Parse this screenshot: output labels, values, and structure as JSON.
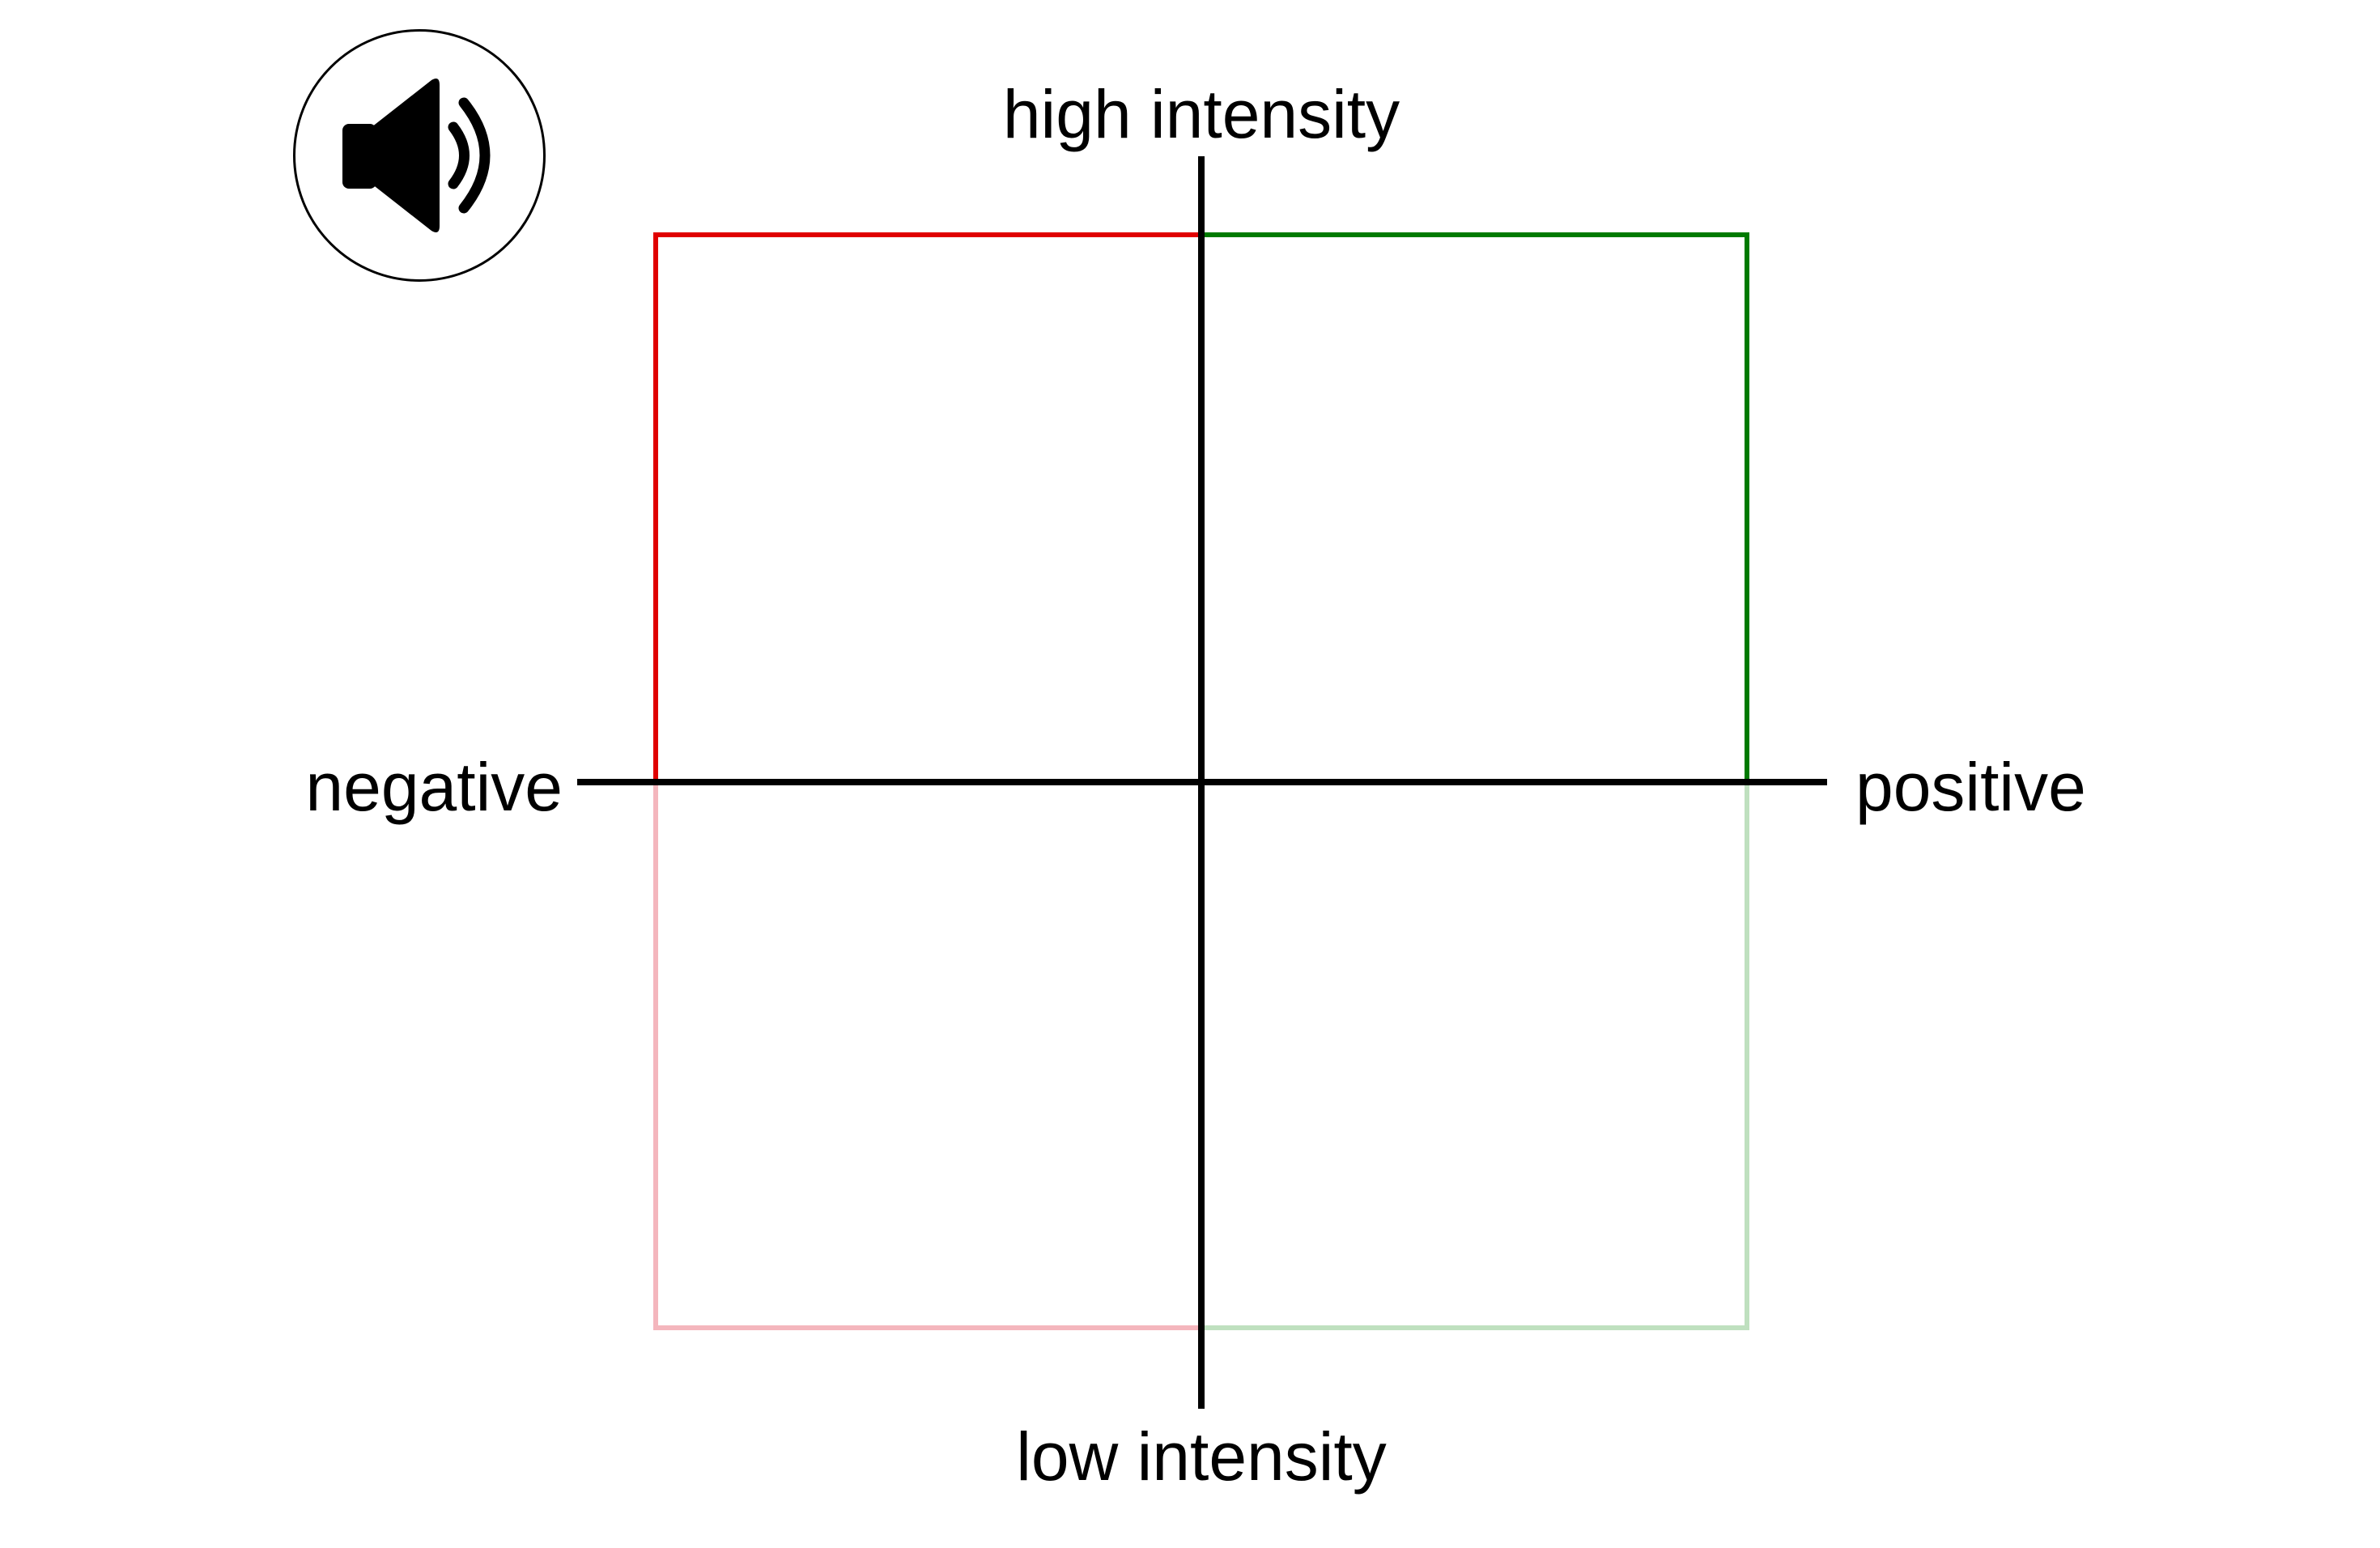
{
  "labels": {
    "top": "high intensity",
    "bottom": "low intensity",
    "left": "negative",
    "right": "positive"
  },
  "audio_button": {
    "icon": "speaker-icon"
  },
  "colors": {
    "axes": "#000000",
    "high_negative": "#e00000",
    "high_positive": "#007a00",
    "low_negative": "#f4b6bd",
    "low_positive": "#bfe0bf"
  }
}
